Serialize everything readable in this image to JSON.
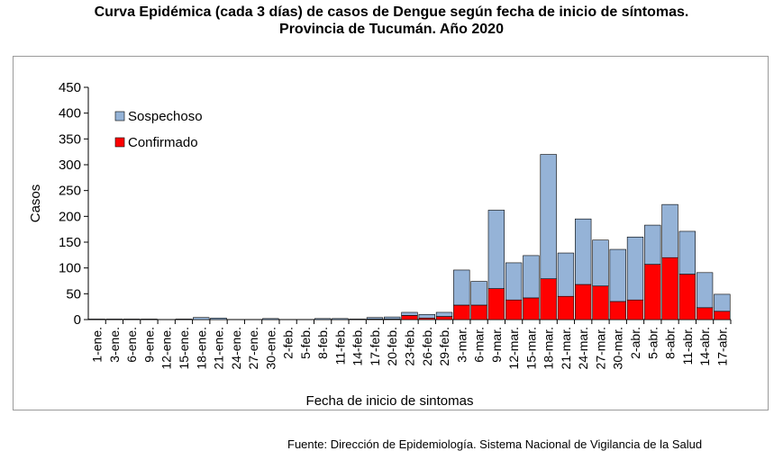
{
  "title_line1": "Curva Epidémica (cada 3 días) de casos de Dengue según fecha de inicio de síntomas.",
  "title_line2": "Provincia de Tucumán. Año 2020",
  "source": "Fuente: Dirección de Epidemiología. Sistema Nacional de Vigilancia de la Salud",
  "chart_data": {
    "type": "bar",
    "stacked": true,
    "categories": [
      "1-ene.",
      "3-ene.",
      "6-ene.",
      "9-ene.",
      "12-ene.",
      "15-ene.",
      "18-ene.",
      "21-ene.",
      "24-ene.",
      "27-ene.",
      "30-ene.",
      "2-feb.",
      "5-feb.",
      "8-feb.",
      "11-feb.",
      "14-feb.",
      "17-feb.",
      "20-feb.",
      "23-feb.",
      "26-feb.",
      "29-feb.",
      "3-mar.",
      "6-mar.",
      "9-mar.",
      "12-mar.",
      "15-mar.",
      "18-mar.",
      "21-mar.",
      "24-mar.",
      "27-mar.",
      "30-mar.",
      "2-abr.",
      "5-abr.",
      "8-abr.",
      "11-abr.",
      "14-abr.",
      "17-abr."
    ],
    "series": [
      {
        "name": "Confirmado",
        "color": "#ff0000",
        "values": [
          0,
          0,
          0,
          0,
          0,
          0,
          0,
          0,
          0,
          0,
          0,
          0,
          0,
          0,
          0,
          0,
          1,
          1,
          8,
          3,
          6,
          28,
          28,
          60,
          38,
          42,
          79,
          45,
          68,
          65,
          35,
          38,
          107,
          120,
          88,
          23,
          16
        ]
      },
      {
        "name": "Sospechoso",
        "color": "#95b3d7",
        "values": [
          1,
          1,
          1,
          1,
          0,
          1,
          4,
          3,
          0,
          0,
          2,
          0,
          0,
          2,
          2,
          1,
          3,
          4,
          6,
          7,
          8,
          68,
          46,
          152,
          72,
          82,
          241,
          84,
          127,
          89,
          101,
          122,
          76,
          103,
          83,
          68,
          33
        ]
      }
    ],
    "xlabel": "Fecha de inicio de sintomas",
    "ylabel": "Casos",
    "ylim": [
      0,
      450
    ],
    "yticks": [
      0,
      50,
      100,
      150,
      200,
      250,
      300,
      350,
      400,
      450
    ],
    "grid": false,
    "legend_position": "top-left"
  }
}
